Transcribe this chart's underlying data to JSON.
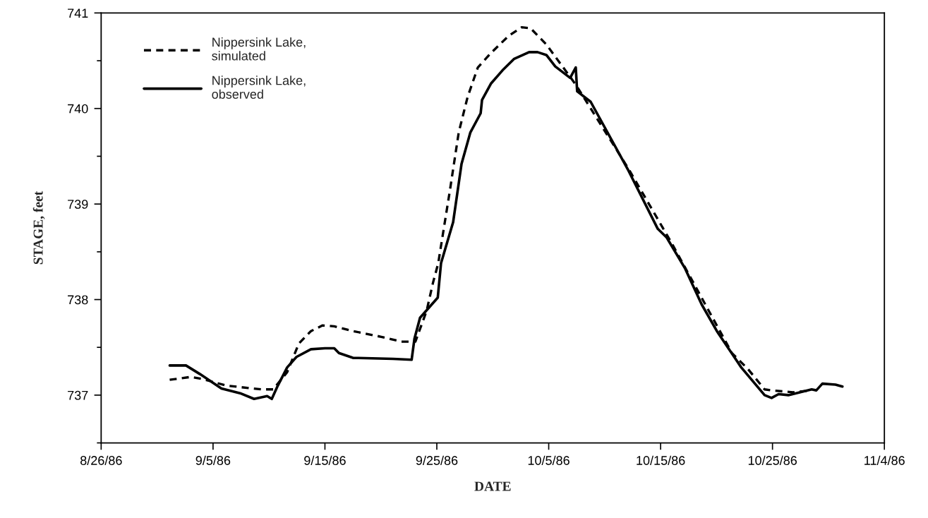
{
  "chart_data": {
    "type": "line",
    "xlabel": "DATE",
    "ylabel": "STAGE, feet",
    "xlim": [
      "1986-08-26",
      "1986-11-04"
    ],
    "xticks": [
      {
        "value": "1986-08-26",
        "label": "8/26/86"
      },
      {
        "value": "1986-09-05",
        "label": "9/5/86"
      },
      {
        "value": "1986-09-15",
        "label": "9/15/86"
      },
      {
        "value": "1986-09-25",
        "label": "9/25/86"
      },
      {
        "value": "1986-10-05",
        "label": "10/5/86"
      },
      {
        "value": "1986-10-15",
        "label": "10/15/86"
      },
      {
        "value": "1986-10-25",
        "label": "10/25/86"
      },
      {
        "value": "1986-11-04",
        "label": "11/4/86"
      }
    ],
    "ylim": [
      736.5,
      741
    ],
    "yticks": [
      {
        "value": 736.5,
        "label": null
      },
      737,
      {
        "value": 737.5,
        "label": null
      },
      738,
      {
        "value": 738.5,
        "label": null
      },
      739,
      {
        "value": 739.5,
        "label": null
      },
      740,
      {
        "value": 740.5,
        "label": null
      },
      741
    ],
    "grid": false,
    "legend": "top left",
    "marker": "none",
    "series": [
      {
        "name": "Nippersink Lake,\nsimulated",
        "color": "#000000",
        "line_style": "dashed",
        "x": [
          "1986-09-01T03:00",
          "1986-09-03T00:00",
          "1986-09-04T01:00",
          "1986-09-06T04:00",
          "1986-09-09T08:00",
          "1986-09-10T09:00",
          "1986-09-10T19:00",
          "1986-09-11T15:00",
          "1986-09-12T16:00",
          "1986-09-13T18:00",
          "1986-09-14T19:00",
          "1986-09-15T20:00",
          "1986-09-17T12:00",
          "1986-09-20T01:00",
          "1986-09-21T20:00",
          "1986-09-23T02:00",
          "1986-09-23T20:00",
          "1986-09-24T02:00",
          "1986-09-24T16:00",
          "1986-09-25T03:00",
          "1986-09-26T04:00",
          "1986-09-26T23:00",
          "1986-09-27T18:00",
          "1986-09-28T16:00",
          "1986-09-29T20:00",
          "1986-10-01T10:00",
          "1986-10-02T14:00",
          "1986-10-03T09:00",
          "1986-10-04T19:00",
          "1986-10-07T10:00",
          "1986-10-12T03:00",
          "1986-10-16T01:00",
          "1986-10-21T09:00",
          "1986-10-22T20:00",
          "1986-10-24T07:00",
          "1986-10-24T22:00",
          "1986-10-26T20:00",
          "1986-10-28T12:00"
        ],
        "values": [
          737.16,
          737.19,
          737.17,
          737.1,
          737.06,
          737.06,
          737.12,
          737.24,
          737.54,
          737.67,
          737.73,
          737.72,
          737.67,
          737.61,
          737.56,
          737.56,
          737.8,
          737.88,
          738.18,
          738.38,
          739.14,
          739.75,
          740.12,
          740.43,
          740.58,
          740.76,
          740.85,
          740.84,
          740.67,
          740.25,
          739.37,
          738.58,
          737.44,
          737.27,
          737.06,
          737.05,
          737.03,
          737.05
        ]
      },
      {
        "name": "Nippersink Lake,\nobserved",
        "color": "#000000",
        "line_style": "solid",
        "x": [
          "1986-09-01T03:00",
          "1986-09-02T14:00",
          "1986-09-03T20:00",
          "1986-09-05T18:00",
          "1986-09-07T10:00",
          "1986-09-08T16:00",
          "1986-09-09T20:00",
          "1986-09-10T06:00",
          "1986-09-10T19:00",
          "1986-09-11T15:00",
          "1986-09-12T11:00",
          "1986-09-13T18:00",
          "1986-09-15T00:00",
          "1986-09-15T20:00",
          "1986-09-16T06:00",
          "1986-09-17T12:00",
          "1986-09-21T02:00",
          "1986-09-22T18:00",
          "1986-09-23T00:00",
          "1986-09-23T12:00",
          "1986-09-25T02:00",
          "1986-09-25T09:00",
          "1986-09-26T11:00",
          "1986-09-27T05:00",
          "1986-09-28T00:00",
          "1986-09-28T22:00",
          "1986-09-29T01:00",
          "1986-09-29T20:00",
          "1986-09-30T21:00",
          "1986-10-01T22:00",
          "1986-10-03T06:00",
          "1986-10-04T00:00",
          "1986-10-04T19:00",
          "1986-10-05T14:00",
          "1986-10-06T22:00",
          "1986-10-07T10:00",
          "1986-10-07T13:00",
          "1986-10-08T18:00",
          "1986-10-12T03:00",
          "1986-10-14T18:00",
          "1986-10-15T13:00",
          "1986-10-17T04:00",
          "1986-10-18T16:00",
          "1986-10-20T02:00",
          "1986-10-22T05:00",
          "1986-10-24T07:00",
          "1986-10-24T22:00",
          "1986-10-25T13:00",
          "1986-10-26T10:00",
          "1986-10-28T12:00",
          "1986-10-28T22:00",
          "1986-10-29T11:00",
          "1986-10-30T15:00",
          "1986-10-31T06:00"
        ],
        "values": [
          737.31,
          737.31,
          737.22,
          737.07,
          737.02,
          736.96,
          736.99,
          736.96,
          737.1,
          737.29,
          737.4,
          737.48,
          737.49,
          737.49,
          737.44,
          737.39,
          737.38,
          737.37,
          737.59,
          737.81,
          738.02,
          738.38,
          738.81,
          739.42,
          739.75,
          739.95,
          740.09,
          740.26,
          740.4,
          740.52,
          740.59,
          740.59,
          740.56,
          740.44,
          740.32,
          740.43,
          740.18,
          740.07,
          739.35,
          738.74,
          738.65,
          738.33,
          737.95,
          737.66,
          737.29,
          737.0,
          736.97,
          737.01,
          737.0,
          737.06,
          737.05,
          737.12,
          737.11,
          737.09
        ]
      }
    ]
  }
}
